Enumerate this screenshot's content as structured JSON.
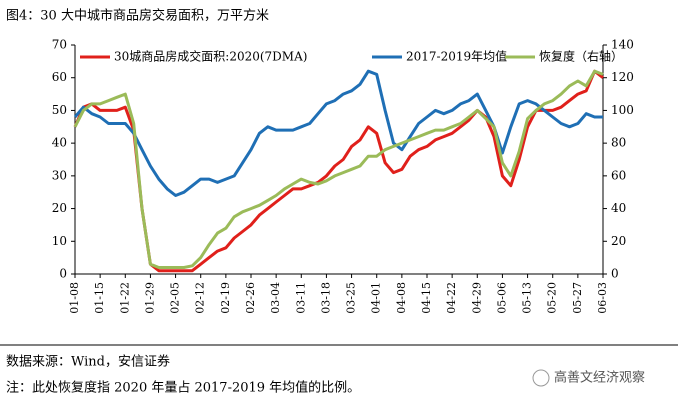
{
  "chart_data": {
    "type": "line",
    "title": "图4：30 大中城市商品房交易面积，万平方米",
    "categories": [
      "01-08",
      null,
      null,
      "01-15",
      null,
      null,
      "01-22",
      null,
      null,
      "01-29",
      null,
      null,
      "02-05",
      null,
      null,
      "02-12",
      null,
      null,
      "02-19",
      null,
      null,
      "02-26",
      null,
      null,
      "03-04",
      null,
      null,
      "03-11",
      null,
      null,
      "03-18",
      null,
      null,
      "03-25",
      null,
      null,
      "04-01",
      null,
      null,
      "04-08",
      null,
      null,
      "04-15",
      null,
      null,
      "04-22",
      null,
      null,
      "04-29",
      null,
      null,
      "05-06",
      null,
      null,
      "05-13",
      null,
      null,
      "05-20",
      null,
      null,
      "05-27",
      null,
      null,
      "06-03"
    ],
    "series": [
      {
        "name": "30城商品房成交面积:2020(7DMA)",
        "color": "#e0201b",
        "axis": "y",
        "values": [
          45,
          51,
          52,
          50,
          50,
          50,
          51,
          44,
          20,
          3,
          1,
          1,
          1,
          1,
          1,
          3,
          5,
          7,
          8,
          11,
          13,
          15,
          18,
          20,
          22,
          24,
          26,
          26,
          27,
          28,
          30,
          33,
          35,
          39,
          41,
          45,
          43,
          34,
          31,
          32,
          36,
          38,
          39,
          41,
          42,
          43,
          45,
          47,
          50,
          48,
          42,
          30,
          27,
          35,
          45,
          50,
          50,
          50,
          51,
          53,
          55,
          56,
          62,
          60
        ]
      },
      {
        "name": "2017-2019年均值",
        "color": "#1f6fb5",
        "axis": "y",
        "values": [
          48,
          51,
          49,
          48,
          46,
          46,
          46,
          43,
          38,
          33,
          29,
          26,
          24,
          25,
          27,
          29,
          29,
          28,
          29,
          30,
          34,
          38,
          43,
          45,
          44,
          44,
          44,
          45,
          46,
          49,
          52,
          53,
          55,
          56,
          58,
          62,
          61,
          50,
          40,
          38,
          42,
          46,
          48,
          50,
          49,
          50,
          52,
          53,
          55,
          50,
          45,
          37,
          45,
          52,
          53,
          52,
          50,
          48,
          46,
          45,
          46,
          49,
          48,
          48
        ]
      },
      {
        "name": "恢复度（右轴）",
        "color": "#9bbb59",
        "axis": "y2",
        "values": [
          90,
          100,
          104,
          104,
          106,
          108,
          110,
          92,
          40,
          6,
          4,
          4,
          4,
          4,
          5,
          10,
          18,
          25,
          28,
          35,
          38,
          40,
          42,
          45,
          48,
          52,
          55,
          58,
          56,
          55,
          57,
          60,
          62,
          64,
          66,
          72,
          72,
          76,
          78,
          80,
          82,
          84,
          86,
          88,
          88,
          90,
          92,
          96,
          100,
          95,
          90,
          68,
          60,
          75,
          95,
          100,
          104,
          106,
          110,
          115,
          118,
          115,
          124,
          122
        ]
      }
    ],
    "ylim": [
      0,
      70
    ],
    "yticks": [
      0,
      10,
      20,
      30,
      40,
      50,
      60,
      70
    ],
    "y2lim": [
      0,
      140
    ],
    "y2ticks": [
      0,
      20,
      40,
      60,
      80,
      100,
      120,
      140
    ],
    "legend": "top",
    "source": "数据来源：Wind，安信证券",
    "note": "注：此处恢复度指 2020 年量占 2017-2019 年均值的比例。",
    "watermark": "高善文经济观察"
  }
}
